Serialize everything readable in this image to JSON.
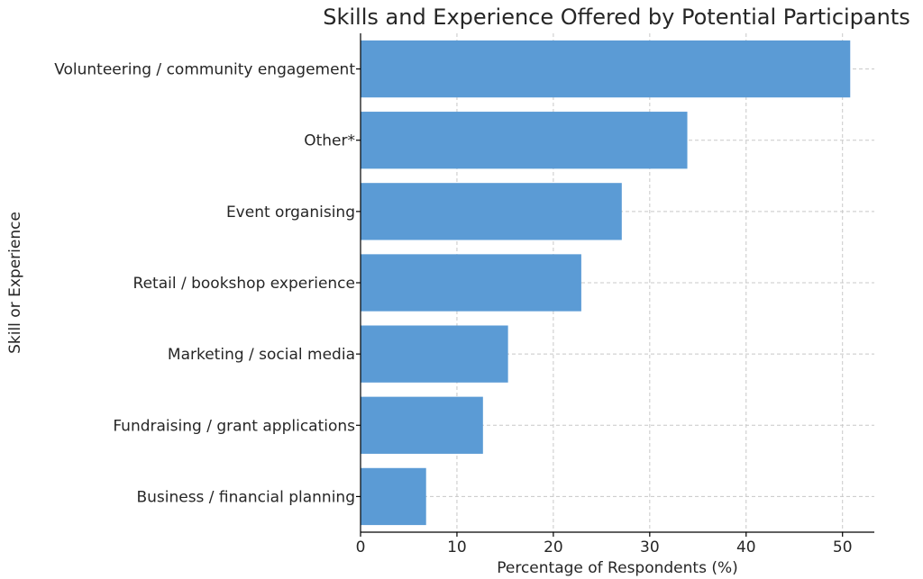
{
  "chart_data": {
    "type": "bar",
    "orientation": "horizontal",
    "title": "Skills and Experience Offered by Potential Participants",
    "xlabel": "Percentage of Respondents (%)",
    "ylabel": "Skill or Experience",
    "categories": [
      "Volunteering / community engagement",
      "Other*",
      "Event organising",
      "Retail / bookshop experience",
      "Marketing / social media",
      "Fundraising / grant applications",
      "Business / financial planning"
    ],
    "values": [
      50.8,
      33.9,
      27.1,
      22.9,
      15.3,
      12.7,
      6.8
    ],
    "xlim": [
      0,
      53.3
    ],
    "xticks": [
      0,
      10,
      20,
      30,
      40,
      50
    ],
    "grid": true,
    "bar_color": "#5b9bd5"
  }
}
